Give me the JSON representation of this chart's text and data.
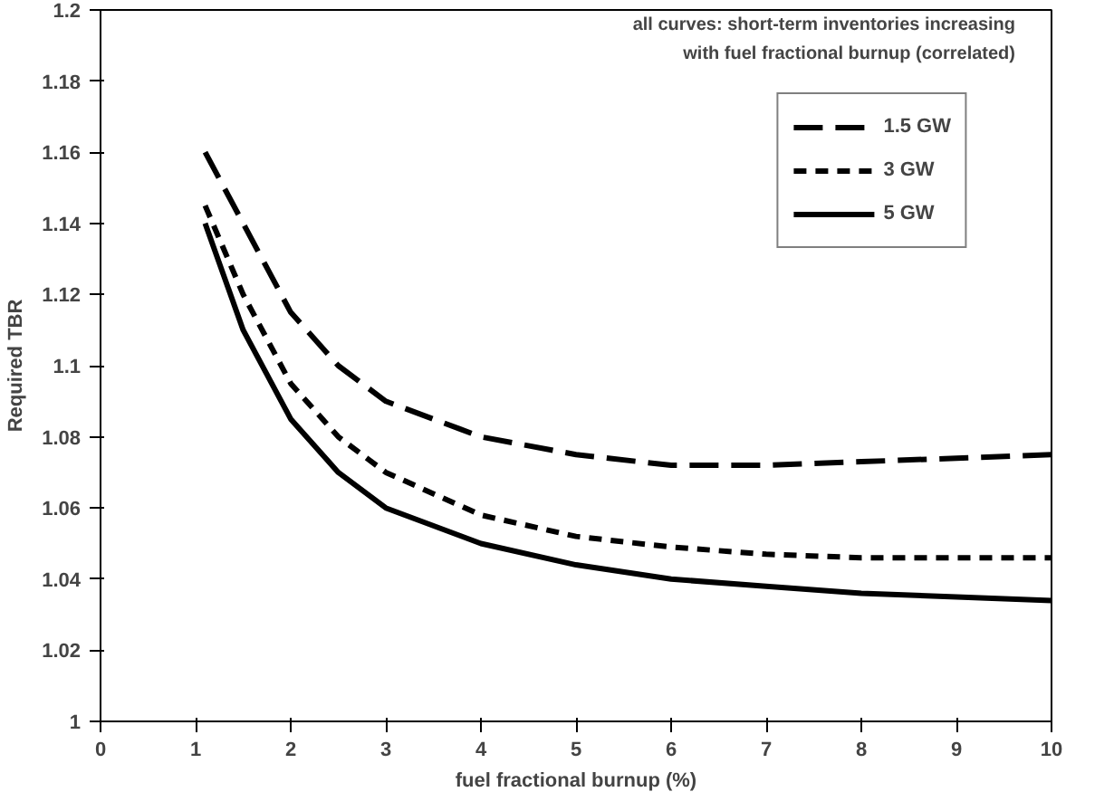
{
  "chart_data": {
    "type": "line",
    "xlabel": "fuel fractional burnup (%)",
    "ylabel": "Required TBR",
    "annotations": [
      "all curves: short-term inventories increasing",
      "with fuel fractional burnup (correlated)"
    ],
    "x": [
      1.1,
      1.5,
      2,
      2.5,
      3,
      4,
      5,
      6,
      7,
      8,
      9,
      10
    ],
    "series": [
      {
        "name": "1.5 GW",
        "color": "#000000",
        "line_style": "dashed",
        "values": [
          1.16,
          1.14,
          1.115,
          1.1,
          1.09,
          1.08,
          1.075,
          1.072,
          1.072,
          1.073,
          1.074,
          1.075
        ]
      },
      {
        "name": "3 GW",
        "color": "#000000",
        "line_style": "dashed",
        "values": [
          1.145,
          1.12,
          1.095,
          1.08,
          1.07,
          1.058,
          1.052,
          1.049,
          1.047,
          1.046,
          1.046,
          1.046
        ]
      },
      {
        "name": "5 GW",
        "color": "#000000",
        "line_style": "solid",
        "values": [
          1.14,
          1.11,
          1.085,
          1.07,
          1.06,
          1.05,
          1.044,
          1.04,
          1.038,
          1.036,
          1.035,
          1.034
        ]
      }
    ],
    "xlim": [
      0,
      10
    ],
    "xticks": [
      0,
      1,
      2,
      3,
      4,
      5,
      6,
      7,
      8,
      9,
      10
    ],
    "ylim": [
      1,
      1.2
    ],
    "yticks": [
      1,
      1.02,
      1.04,
      1.06,
      1.08,
      1.1,
      1.12,
      1.14,
      1.16,
      1.18,
      1.2
    ],
    "grid": false,
    "legend": "top right",
    "marker": "none"
  }
}
